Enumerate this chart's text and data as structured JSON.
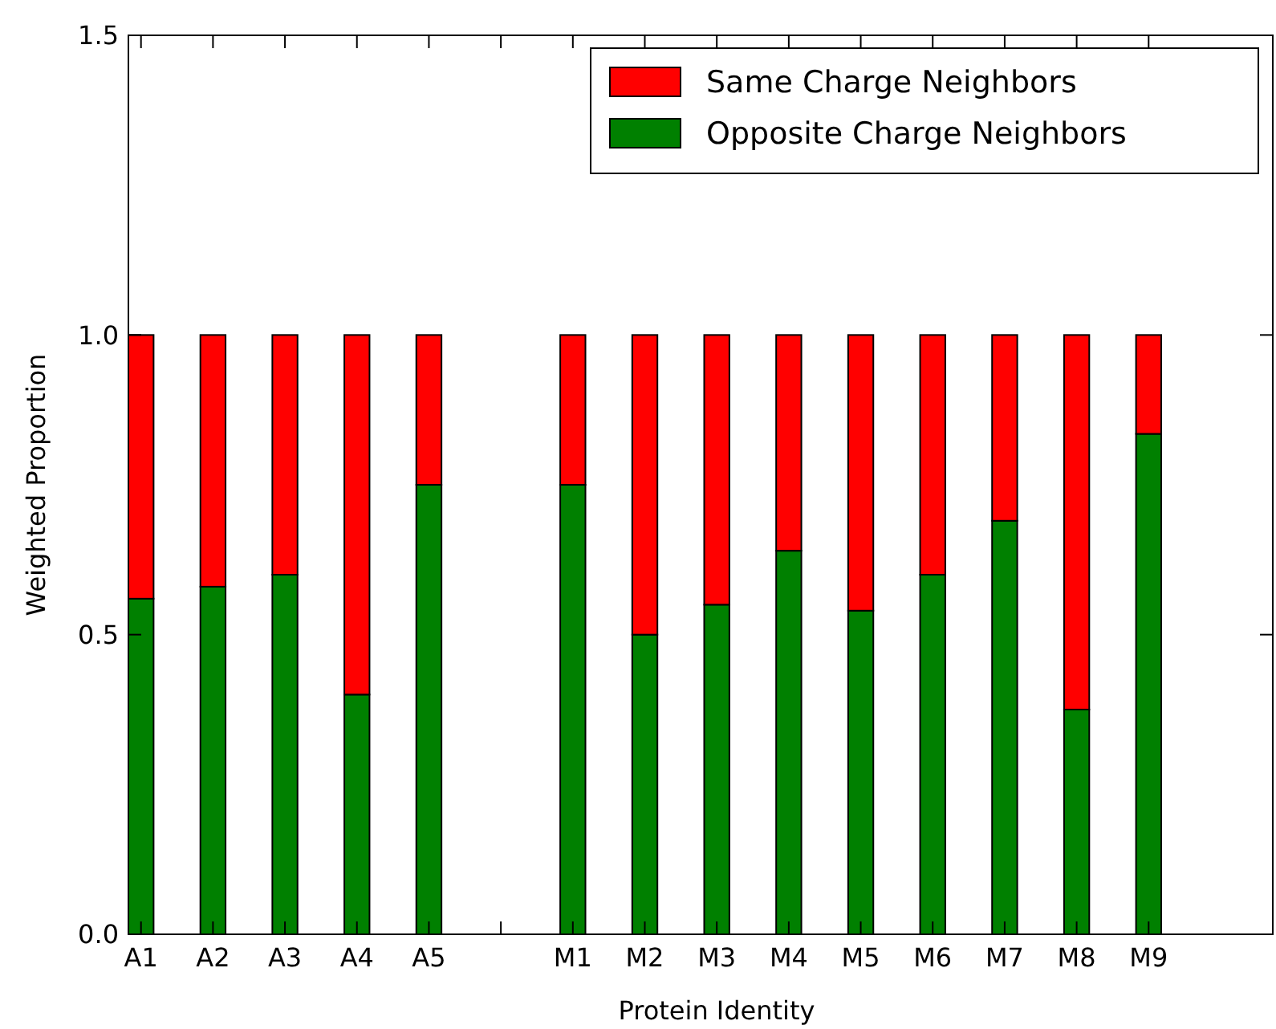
{
  "chart_data": {
    "type": "bar",
    "stacked": true,
    "xlabel": "Protein Identity",
    "ylabel": "Weighted Proportion",
    "categories": [
      "A1",
      "A2",
      "A3",
      "A4",
      "A5",
      null,
      "M1",
      "M2",
      "M3",
      "M4",
      "M5",
      "M6",
      "M7",
      "M8",
      "M9"
    ],
    "series": [
      {
        "name": "Opposite Charge Neighbors",
        "color": "#008000",
        "values": [
          0.56,
          0.58,
          0.6,
          0.4,
          0.75,
          0,
          0.75,
          0.5,
          0.55,
          0.64,
          0.54,
          0.6,
          0.69,
          0.375,
          0.835
        ]
      },
      {
        "name": "Same Charge Neighbors",
        "color": "#ff0000",
        "values": [
          0.44,
          0.42,
          0.4,
          0.6,
          0.25,
          0,
          0.25,
          0.5,
          0.45,
          0.36,
          0.46,
          0.4,
          0.31,
          0.625,
          0.165
        ]
      }
    ],
    "ylim": [
      0,
      1.5
    ],
    "yticks": [
      {
        "value": 0,
        "label": "0.0"
      },
      {
        "value": 0.5,
        "label": "0.5"
      },
      {
        "value": 1,
        "label": "1.0"
      },
      {
        "value": 1.5,
        "label": "1.5"
      }
    ],
    "legend": "top right"
  }
}
